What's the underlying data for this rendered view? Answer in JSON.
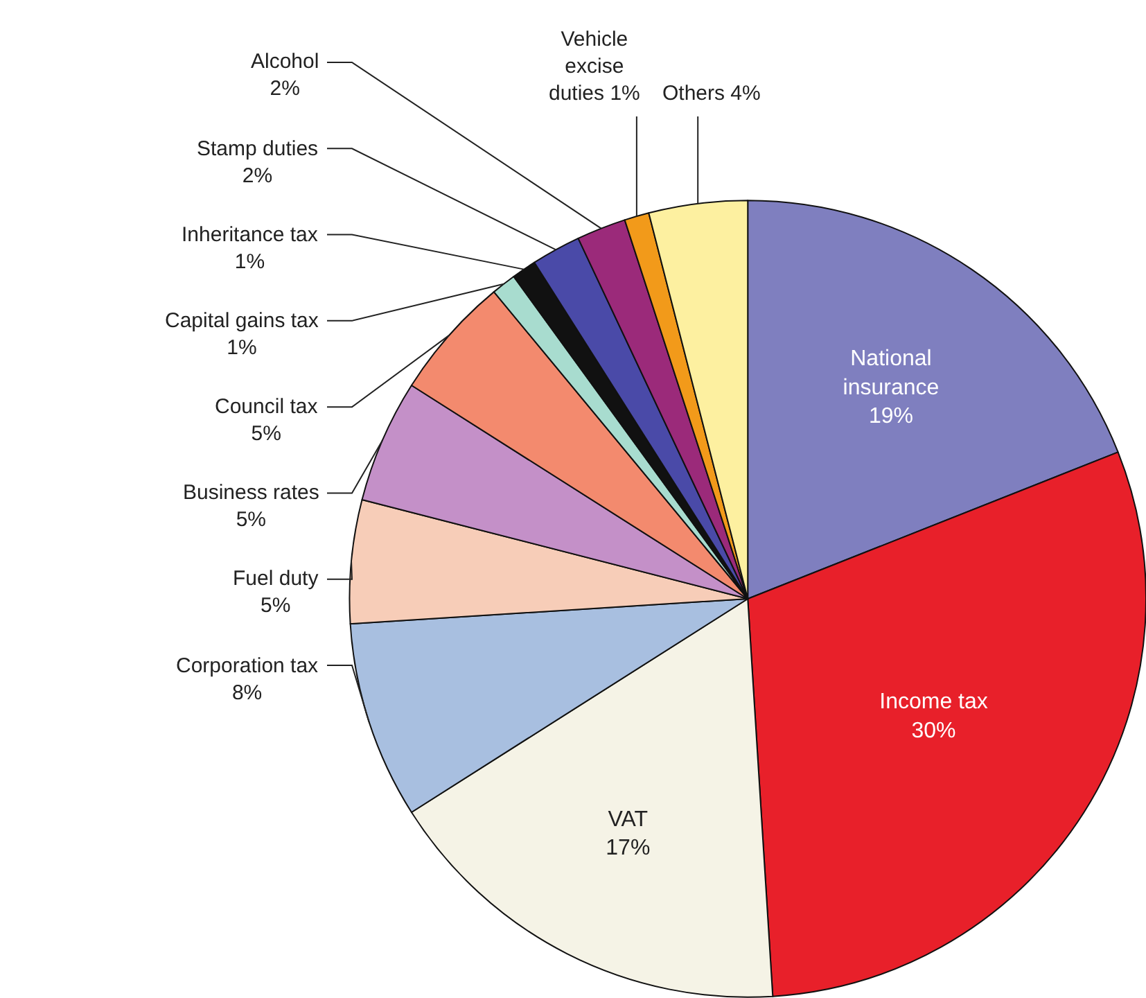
{
  "chart_data": {
    "type": "pie",
    "categories": [
      "National insurance",
      "Income tax",
      "VAT",
      "Corporation tax",
      "Fuel duty",
      "Business rates",
      "Council tax",
      "Capital gains tax",
      "Inheritance tax",
      "Stamp duties",
      "Alcohol",
      "Vehicle excise duties",
      "Others"
    ],
    "values": [
      19,
      30,
      17,
      8,
      5,
      5,
      5,
      1,
      1,
      2,
      2,
      1,
      4
    ],
    "value_labels": [
      "19%",
      "30%",
      "17%",
      "8%",
      "5%",
      "5%",
      "5%",
      "1%",
      "1%",
      "2%",
      "2%",
      "1%",
      "4%"
    ],
    "colors": [
      "#7f7fbf",
      "#e8202a",
      "#f5f3e6",
      "#a8bfe0",
      "#f7cdb8",
      "#c490c8",
      "#f38a6e",
      "#a8dccf",
      "#111111",
      "#4a4aa8",
      "#9b2a7a",
      "#f29a1a",
      "#fdf0a0"
    ]
  }
}
